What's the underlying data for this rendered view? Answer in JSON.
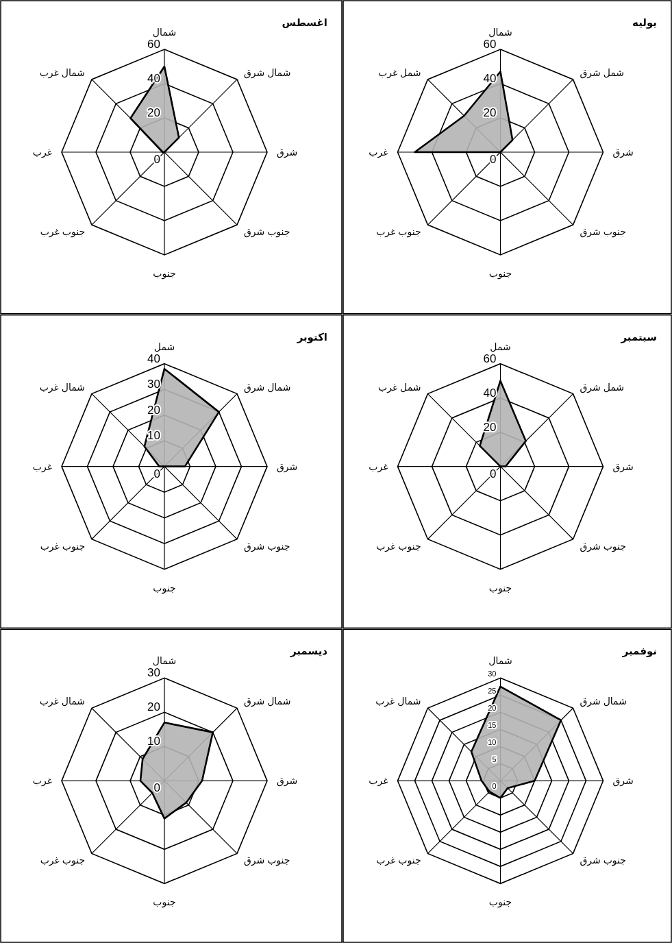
{
  "chart_data": [
    {
      "type": "radar",
      "title": "يوليه",
      "categories": [
        "شمال",
        "شمل شرق",
        "شرق",
        "جنوب شرق",
        "جنوب",
        "جنوب غرب",
        "غرب",
        "شمل غرب"
      ],
      "ylim": [
        0,
        60
      ],
      "yticks": [
        0,
        20,
        40,
        60
      ],
      "grid": true,
      "series": [
        {
          "color": "#b4b4b4",
          "values": [
            47,
            10,
            0,
            0,
            0,
            0,
            50,
            30
          ]
        }
      ]
    },
    {
      "type": "radar",
      "title": "اغسطس",
      "categories": [
        "شمال",
        "شمال شرق",
        "شرق",
        "جنوب شرق",
        "جنوب",
        "جنوب غرب",
        "غرب",
        "شمال غرب"
      ],
      "ylim": [
        0,
        60
      ],
      "yticks": [
        0,
        20,
        40,
        60
      ],
      "grid": true,
      "series": [
        {
          "color": "#b4b4b4",
          "values": [
            50,
            12,
            0,
            0,
            0,
            0,
            1,
            28
          ]
        }
      ]
    },
    {
      "type": "radar",
      "title": "سبتمبر",
      "categories": [
        "شمل",
        "شمل شرق",
        "شرق",
        "جنوب شرق",
        "جنوب",
        "جنوب غرب",
        "غرب",
        "شمل غرب"
      ],
      "ylim": [
        0,
        60
      ],
      "yticks": [
        0,
        20,
        40,
        60
      ],
      "grid": true,
      "series": [
        {
          "color": "#b4b4b4",
          "values": [
            50,
            21,
            3,
            0,
            0,
            0,
            0,
            17
          ]
        }
      ]
    },
    {
      "type": "radar",
      "title": "اكتوبر",
      "categories": [
        "شمل",
        "شمال شرق",
        "شرق",
        "جنوب شرق",
        "جنوب",
        "جنوب غرب",
        "غرب",
        "شمال غرب"
      ],
      "ylim": [
        0,
        40
      ],
      "yticks": [
        0,
        10,
        20,
        30,
        40
      ],
      "grid": true,
      "series": [
        {
          "color": "#b4b4b4",
          "values": [
            38,
            30,
            8,
            0,
            0,
            0,
            2,
            11
          ]
        }
      ]
    },
    {
      "type": "radar",
      "title": "نوفمبر",
      "categories": [
        "شمال",
        "شمال شرق",
        "شرق",
        "جنوب شرق",
        "جنوب",
        "جنوب غرب",
        "غرب",
        "شمال غرب"
      ],
      "ylim": [
        0,
        30
      ],
      "yticks": [
        0,
        5,
        10,
        15,
        20,
        25,
        30
      ],
      "grid": true,
      "series": [
        {
          "color": "#b4b4b4",
          "values": [
            27.5,
            25,
            10,
            3,
            5,
            4.5,
            5.5,
            12
          ]
        }
      ]
    },
    {
      "type": "radar",
      "title": "ديسمبر",
      "categories": [
        "شمال",
        "شمال شرق",
        "شرق",
        "جنوب شرق",
        "جنوب",
        "جنوب غرب",
        "غرب",
        "شمال غرب"
      ],
      "ylim": [
        0,
        30
      ],
      "yticks": [
        0,
        10,
        20,
        30
      ],
      "grid": true,
      "series": [
        {
          "color": "#b4b4b4",
          "values": [
            17,
            20,
            11,
            9,
            11,
            5,
            7,
            9
          ]
        }
      ]
    }
  ]
}
